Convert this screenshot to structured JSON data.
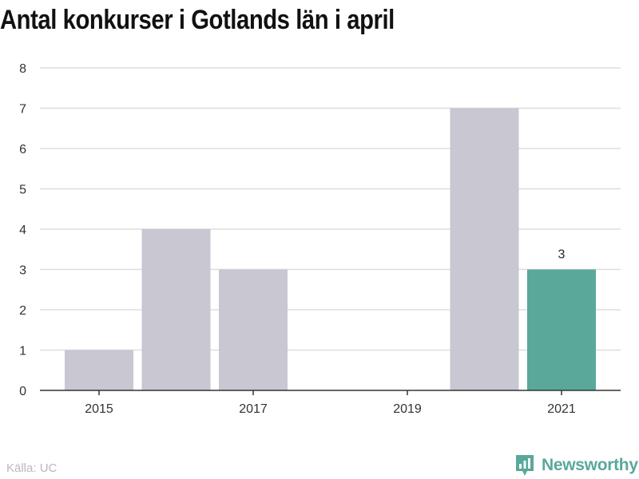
{
  "title": "Antal konkurser i Gotlands län i april",
  "source": "Källa: UC",
  "brand": {
    "name": "Newsworthy",
    "icon": "newsworthy-logo-icon",
    "color": "#5aa89a"
  },
  "colors": {
    "bar": "#c8c7d2",
    "highlight": "#5aa89a",
    "grid": "#dddddd",
    "axis": "#333333"
  },
  "chart_data": {
    "type": "bar",
    "title": "Antal konkurser i Gotlands län i april",
    "xlabel": "",
    "ylabel": "",
    "categories": [
      "2015",
      "2016",
      "2017",
      "2018",
      "2019",
      "2020",
      "2021"
    ],
    "x_tick_labels": [
      "2015",
      "",
      "2017",
      "",
      "2019",
      "",
      "2021"
    ],
    "values": [
      1,
      4,
      3,
      0,
      0,
      7,
      3
    ],
    "highlight_index": 6,
    "data_labels": [
      {
        "index": 6,
        "text": "3"
      }
    ],
    "ylim": [
      0,
      8
    ],
    "yticks": [
      0,
      1,
      2,
      3,
      4,
      5,
      6,
      7,
      8
    ],
    "grid": true,
    "legend": "none"
  }
}
